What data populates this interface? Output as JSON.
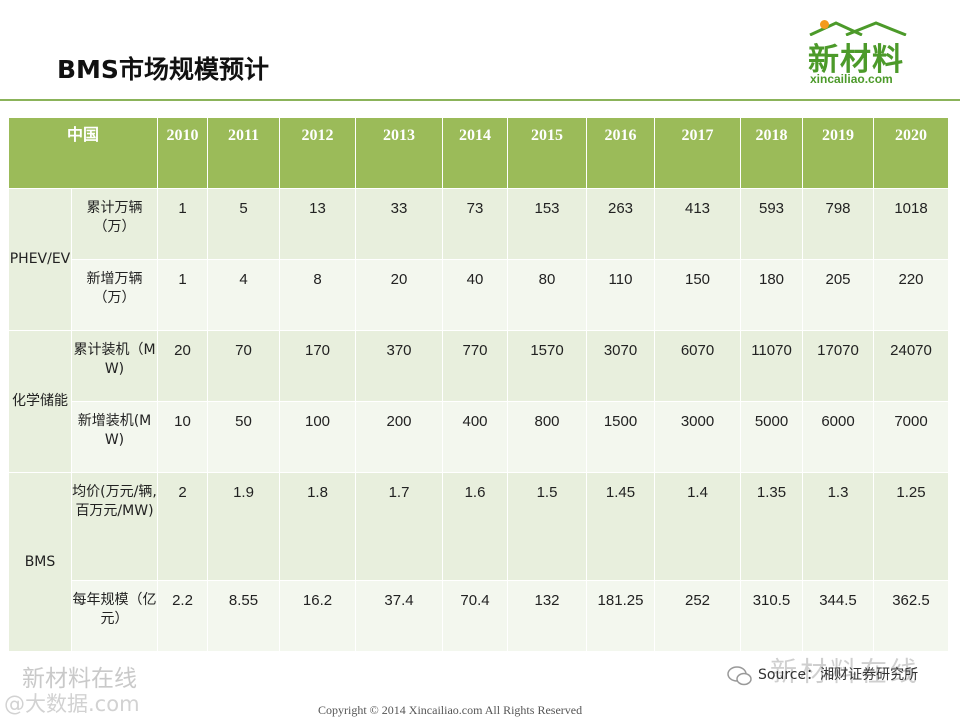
{
  "title": "BMS市场规模预计",
  "logo": {
    "name": "新材料",
    "domain": "xincailiao.com",
    "brand_color": "#4c9a2a"
  },
  "table": {
    "header": [
      "中国",
      "2010",
      "2011",
      "2012",
      "2013",
      "2014",
      "2015",
      "2016",
      "2017",
      "2018",
      "2019",
      "2020"
    ],
    "header_display": [
      "中国",
      "20\n10",
      "2011",
      "2012",
      "2013",
      "2014",
      "2015",
      "2016",
      "2017",
      "201\n8",
      "2019",
      "2020"
    ],
    "groups": [
      {
        "name": "PHEV/EV",
        "rows": [
          {
            "label": "累计万辆（万）",
            "values": [
              "1",
              "5",
              "13",
              "33",
              "73",
              "153",
              "263",
              "413",
              "593",
              "798",
              "1018"
            ]
          },
          {
            "label": "新增万辆（万）",
            "values": [
              "1",
              "4",
              "8",
              "20",
              "40",
              "80",
              "110",
              "150",
              "180",
              "205",
              "220"
            ]
          }
        ]
      },
      {
        "name": "化学储能",
        "rows": [
          {
            "label": "累计装机（MW)",
            "values": [
              "20",
              "70",
              "170",
              "370",
              "770",
              "1570",
              "3070",
              "6070",
              "11070",
              "17070",
              "24070"
            ]
          },
          {
            "label": "新增装机(MW)",
            "values": [
              "10",
              "50",
              "100",
              "200",
              "400",
              "800",
              "1500",
              "3000",
              "5000",
              "6000",
              "7000"
            ]
          }
        ]
      },
      {
        "name": "BMS",
        "rows": [
          {
            "label": "均价(万元/辆,百万元/MW)",
            "values": [
              "2",
              "1.9",
              "1.8",
              "1.7",
              "1.6",
              "1.5",
              "1.45",
              "1.4",
              "1.35",
              "1.3",
              "1.25"
            ]
          },
          {
            "label": "每年规模（亿元）",
            "values": [
              "2.2",
              "8.55",
              "16.2",
              "37.4",
              "70.4",
              "132",
              "181.25",
              "252",
              "310.5",
              "344.5",
              "362.5"
            ]
          }
        ]
      }
    ]
  },
  "watermarks": {
    "left_line1": "新材料在线",
    "left_line2": "@大数据.com",
    "right": "新材料在线"
  },
  "source": "Source：湘财证券研究所",
  "copyright": "Copyright © 2014   Xincailiao.com    All Rights Reserved",
  "colors": {
    "header_bg": "#9bbb59",
    "row_dark": "#e8efdd",
    "row_light": "#f3f7ee"
  }
}
